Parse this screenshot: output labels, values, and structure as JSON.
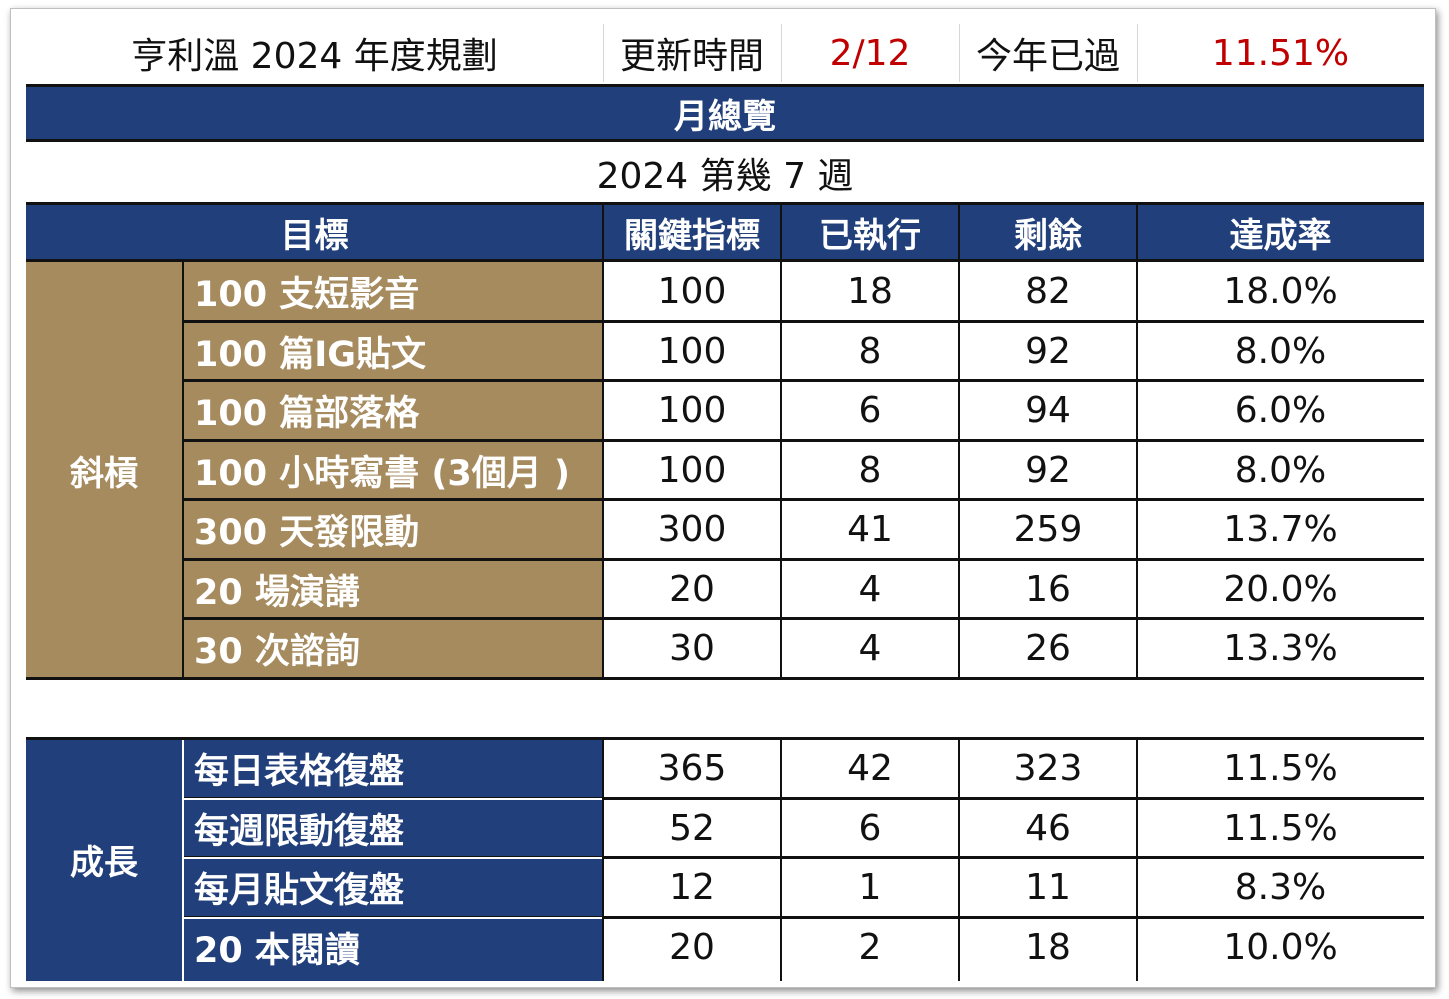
{
  "header": {
    "title": "亨利溫 2024 年度規劃",
    "update_label": "更新時間",
    "update_value": "2/12",
    "year_passed_label": "今年已過",
    "year_passed_value": "11.51%"
  },
  "band": {
    "title": "月總覽"
  },
  "week_line": "2024 第幾 7 週",
  "columns": {
    "goal": "目標",
    "kpi": "關鍵指標",
    "done": "已執行",
    "remaining": "剩餘",
    "rate": "達成率"
  },
  "colors": {
    "navy": "#213f7a",
    "gold": "#a68b5f",
    "red": "#c00000"
  },
  "groups": [
    {
      "name": "斜槓",
      "rows": [
        {
          "goal": "100 支短影音",
          "kpi": "100",
          "done": "18",
          "remaining": "82",
          "rate": "18.0%"
        },
        {
          "goal": "100 篇IG貼文",
          "kpi": "100",
          "done": "8",
          "remaining": "92",
          "rate": "8.0%"
        },
        {
          "goal": "100 篇部落格",
          "kpi": "100",
          "done": "6",
          "remaining": "94",
          "rate": "6.0%"
        },
        {
          "goal": "100 小時寫書 (3個月 )",
          "kpi": "100",
          "done": "8",
          "remaining": "92",
          "rate": "8.0%"
        },
        {
          "goal": "300 天發限動",
          "kpi": "300",
          "done": "41",
          "remaining": "259",
          "rate": "13.7%"
        },
        {
          "goal": "20 場演講",
          "kpi": "20",
          "done": "4",
          "remaining": "16",
          "rate": "20.0%"
        },
        {
          "goal": "30 次諮詢",
          "kpi": "30",
          "done": "4",
          "remaining": "26",
          "rate": "13.3%"
        }
      ]
    },
    {
      "name": "成長",
      "rows": [
        {
          "goal": "每日表格復盤",
          "kpi": "365",
          "done": "42",
          "remaining": "323",
          "rate": "11.5%"
        },
        {
          "goal": "每週限動復盤",
          "kpi": "52",
          "done": "6",
          "remaining": "46",
          "rate": "11.5%"
        },
        {
          "goal": "每月貼文復盤",
          "kpi": "12",
          "done": "1",
          "remaining": "11",
          "rate": "8.3%"
        },
        {
          "goal": "20 本閱讀",
          "kpi": "20",
          "done": "2",
          "remaining": "18",
          "rate": "10.0%"
        }
      ]
    }
  ]
}
